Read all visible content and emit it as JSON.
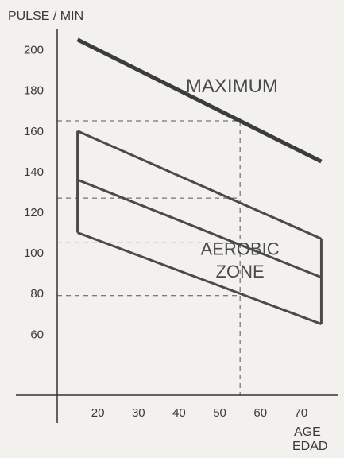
{
  "chart_data": {
    "type": "line",
    "title": "",
    "ylabel": "PULSE / MIN",
    "xlabel": [
      "AGE",
      "EDAD"
    ],
    "xlim": [
      10,
      80
    ],
    "ylim": [
      30,
      210
    ],
    "x_ticks": [
      20,
      30,
      40,
      50,
      60,
      70
    ],
    "y_ticks": [
      200,
      180,
      160,
      140,
      120,
      100,
      80,
      60
    ],
    "grid": false,
    "series": [
      {
        "name": "MAXIMUM",
        "x": [
          15,
          75
        ],
        "y": [
          205,
          145
        ]
      },
      {
        "name": "",
        "x": [
          15,
          75
        ],
        "y": [
          160,
          107
        ]
      },
      {
        "name": "",
        "x": [
          15,
          75
        ],
        "y": [
          136,
          88
        ]
      },
      {
        "name": "",
        "x": [
          15,
          75
        ],
        "y": [
          110,
          65
        ]
      }
    ],
    "zone_edges": [
      {
        "x": 15,
        "y": [
          110,
          160
        ]
      },
      {
        "x": 75,
        "y": [
          65,
          107
        ]
      }
    ],
    "reference": {
      "age": 55,
      "values": [
        165,
        127,
        105,
        79
      ]
    },
    "annotations": [
      {
        "text": "MAXIMUM",
        "x": 53,
        "y": 179
      },
      {
        "text": "AEROBIC",
        "x": 55,
        "y": 99
      },
      {
        "text": "ZONE",
        "x": 55,
        "y": 88
      }
    ]
  }
}
